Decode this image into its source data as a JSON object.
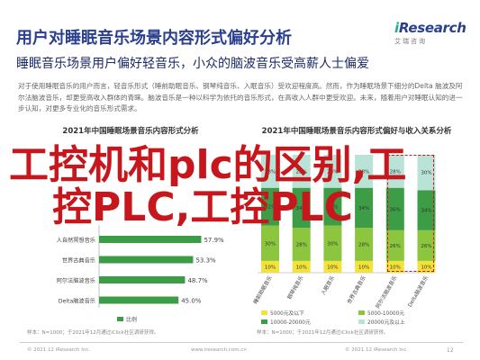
{
  "header": {
    "title": "用户对睡眠音乐场景内容形式偏好分析",
    "subtitle": "睡眠音乐场景用户偏好轻音乐，小众的脑波音乐受高薪人士偏爱",
    "description": "对于使用睡眠音乐的用户而言，轻音乐形式（睡前助眠音乐、钢琴纯音乐、入眠音乐）受欢迎程度高。然而，作为睡眠场景下细分的Delta 脑波及阿尔法脑波音乐，却更受高收入群体的青睐。脑波音乐是一种以科学为依托的音乐形式，在高收入人群中更受欢迎。未来，随着用户对睡眠认知的进一步认知，对更多专业化的音乐形式需求。"
  },
  "logo": {
    "brand_i": "i",
    "brand_rest": "Research",
    "brand_sub": "艾瑞咨询"
  },
  "overlay": {
    "line1": "工控机和plc的区别,工",
    "line2": "控PLC,工控PLC"
  },
  "chart_data": [
    {
      "type": "bar",
      "orientation": "horizontal",
      "title": "2021年中国睡眠场景音乐内容形式分析",
      "categories": [
        "人自然冥想音乐",
        "世界古典音乐",
        "阿尔法脑波音乐",
        "Delta脑波音乐"
      ],
      "series": [
        {
          "name": "比例",
          "values": [
            57.9,
            53.3,
            48.7,
            45.0
          ],
          "labels": [
            "57.9%",
            "53.3%",
            "48.7%",
            "45.0%"
          ]
        }
      ],
      "xlim": [
        0,
        100
      ],
      "legend": "bottom",
      "note": "样本：N=1000；于2021年12月通过iClick社区调研获得。",
      "colors": {
        "bar": "#3d9c46"
      }
    },
    {
      "type": "bar",
      "orientation": "vertical",
      "stacked": true,
      "title": "2021年中国睡眠场景音乐内容形式偏好与收入关系分析",
      "categories": [
        "睡前助眠音乐",
        "钢琴纯音乐",
        "入眠音乐",
        "世界古典音乐",
        "阿尔法脑波音乐",
        "Delta脑波音乐"
      ],
      "series": [
        {
          "name": "5000元及以下",
          "values": [
            10,
            10,
            10,
            10,
            10,
            10
          ]
        },
        {
          "name": "5000-10000元",
          "values": [
            30,
            28,
            30,
            28,
            26,
            26
          ]
        },
        {
          "name": "10000-20000元",
          "values": [
            32,
            34,
            32,
            34,
            36,
            34
          ]
        },
        {
          "name": "20000元及以上",
          "values": [
            28,
            28,
            28,
            28,
            28,
            30
          ]
        }
      ],
      "ylim": [
        0,
        100
      ],
      "legend": "bottom",
      "note": "样本：N=1000；于2021年12月通过iClick社区调研获得。",
      "colors": {
        "s1": "#f2e23a",
        "s2": "#8cc63e",
        "s3": "#3d9c46",
        "s4": "#b9e3d6"
      }
    }
  ],
  "footer": {
    "copyright": "© 2021.12 iResearch Inc.",
    "site": "www.iresearch.com.cn",
    "copyright2": "© 2021.12 iResearch Inc.",
    "site2": "www.iresearch.com.cn",
    "page": "12"
  }
}
